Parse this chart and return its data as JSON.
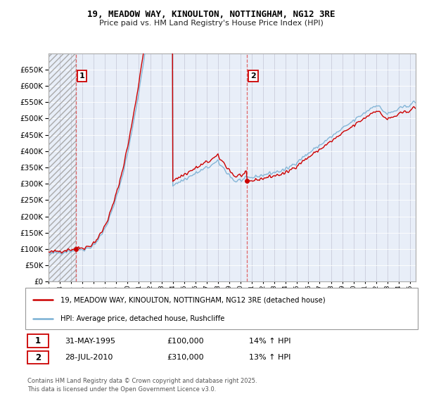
{
  "title": "19, MEADOW WAY, KINOULTON, NOTTINGHAM, NG12 3RE",
  "subtitle": "Price paid vs. HM Land Registry's House Price Index (HPI)",
  "background_color": "#ffffff",
  "plot_background": "#e8eef8",
  "grid_color": "#cccccc",
  "red_line_color": "#cc0000",
  "blue_line_color": "#7ab0d4",
  "sale1_date": 1995.41,
  "sale1_price": 100000,
  "sale2_date": 2010.57,
  "sale2_price": 310000,
  "legend_line1": "19, MEADOW WAY, KINOULTON, NOTTINGHAM, NG12 3RE (detached house)",
  "legend_line2": "HPI: Average price, detached house, Rushcliffe",
  "footnote": "Contains HM Land Registry data © Crown copyright and database right 2025.\nThis data is licensed under the Open Government Licence v3.0.",
  "table_row1": [
    "1",
    "31-MAY-1995",
    "£100,000",
    "14% ↑ HPI"
  ],
  "table_row2": [
    "2",
    "28-JUL-2010",
    "£310,000",
    "13% ↑ HPI"
  ],
  "xmin": 1993.0,
  "xmax": 2025.5,
  "ylim": [
    0,
    700000
  ],
  "yticks": [
    0,
    50000,
    100000,
    150000,
    200000,
    250000,
    300000,
    350000,
    400000,
    450000,
    500000,
    550000,
    600000,
    650000
  ]
}
